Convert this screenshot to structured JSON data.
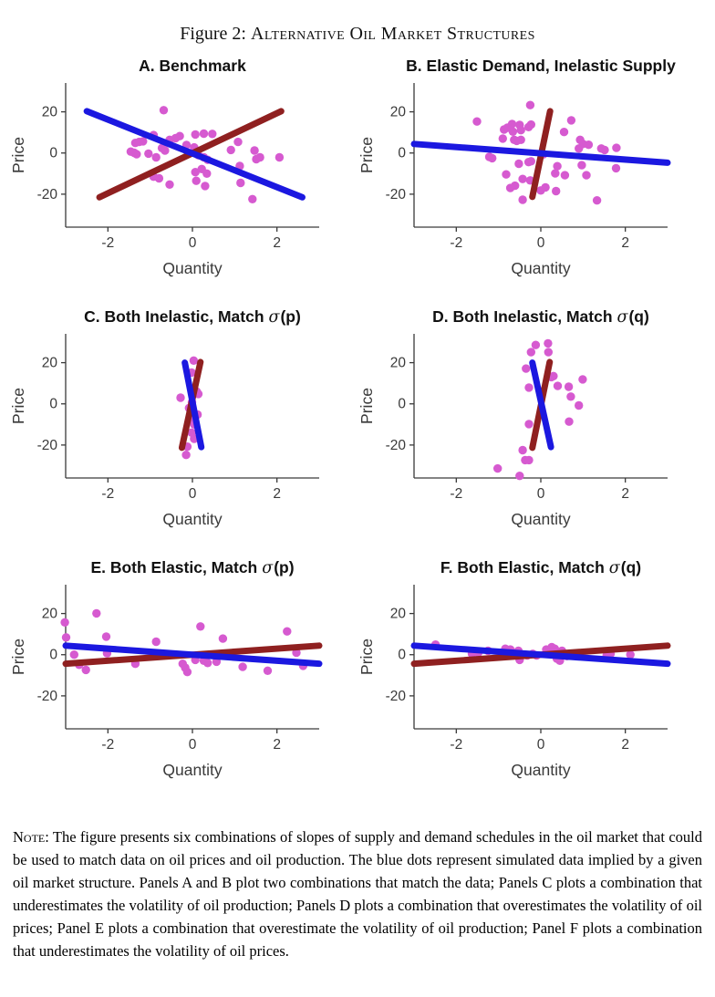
{
  "figure_title": {
    "prefix": "Figure 2: ",
    "smallcaps": "Alternative Oil Market Structures"
  },
  "colors": {
    "demand_blue": "#1b18e0",
    "supply_red": "#8f2020",
    "dots_magenta": "#d65ad0",
    "axis": "#3a3a3a",
    "title_text": "#111111"
  },
  "note": {
    "label": "Note:",
    "text": "The figure presents six combinations of slopes of supply and demand schedules in the oil market that could be used to match data on oil prices and oil production. The blue dots represent simulated data implied by a given oil market structure. Panels A and B plot two combinations that match the data; Panels C plots a combination that underestimates the volatility of oil production; Panels D plots a combination that overestimates the volatility of oil prices; Panel E plots a combination that overestimate the volatility of oil production; Panel F plots a combination that underestimates the volatility of oil prices."
  },
  "chart_data": [
    {
      "type": "scatter",
      "panel": "A",
      "title_main": "A. Benchmark",
      "sigma": "",
      "sigma_arg": "",
      "xlabel": "Quantity",
      "ylabel": "Price",
      "xlim": [
        -3,
        3
      ],
      "ylim": [
        -36,
        34
      ],
      "xticks": [
        "-2",
        "0",
        "2"
      ],
      "yticks": [
        "-20",
        "0",
        "20"
      ],
      "demand_line": {
        "x1": -2.5,
        "y1": 20.3,
        "x2": 2.6,
        "y2": -21.5
      },
      "supply_line": {
        "x1": -2.2,
        "y1": -21.5,
        "x2": 2.1,
        "y2": 20.3
      },
      "points": [
        [
          -0.68,
          20.8
        ],
        [
          -1.35,
          4.9
        ],
        [
          -1.26,
          5.4
        ],
        [
          -1.17,
          5.7
        ],
        [
          -1.46,
          0.7
        ],
        [
          -1.38,
          0.1
        ],
        [
          -1.32,
          -0.6
        ],
        [
          -1.04,
          -0.3
        ],
        [
          -0.92,
          8.7
        ],
        [
          -0.86,
          -2.1
        ],
        [
          -0.72,
          2.4
        ],
        [
          -0.65,
          1.2
        ],
        [
          -0.54,
          6.4
        ],
        [
          -0.4,
          7.2
        ],
        [
          -0.3,
          8.2
        ],
        [
          0.07,
          9.0
        ],
        [
          0.27,
          9.4
        ],
        [
          0.47,
          9.3
        ],
        [
          -0.14,
          3.9
        ],
        [
          0.04,
          2.7
        ],
        [
          0.14,
          -1.0
        ],
        [
          0.27,
          -2.1
        ],
        [
          0.36,
          -3.3
        ],
        [
          0.22,
          -7.8
        ],
        [
          0.07,
          -9.3
        ],
        [
          0.34,
          -10.0
        ],
        [
          -0.92,
          -11.5
        ],
        [
          -0.79,
          -12.3
        ],
        [
          -0.54,
          -15.3
        ],
        [
          0.09,
          -13.5
        ],
        [
          0.3,
          -16.0
        ],
        [
          0.91,
          1.5
        ],
        [
          1.08,
          5.4
        ],
        [
          1.12,
          -6.3
        ],
        [
          1.14,
          -14.5
        ],
        [
          1.47,
          1.2
        ],
        [
          1.51,
          -3.0
        ],
        [
          1.6,
          -2.1
        ],
        [
          1.42,
          -22.4
        ],
        [
          2.06,
          -2.1
        ]
      ]
    },
    {
      "type": "scatter",
      "panel": "B",
      "title_main": "B. Elastic Demand, Inelastic Supply",
      "sigma": "",
      "sigma_arg": "",
      "xlabel": "Quantity",
      "ylabel": "Price",
      "xlim": [
        -3,
        3
      ],
      "ylim": [
        -36,
        34
      ],
      "xticks": [
        "-2",
        "0",
        "2"
      ],
      "yticks": [
        "-20",
        "0",
        "20"
      ],
      "demand_line": {
        "x1": -3,
        "y1": 4.4,
        "x2": 3,
        "y2": -4.7
      },
      "supply_line": {
        "x1": -0.2,
        "y1": -21.3,
        "x2": 0.22,
        "y2": 20.3
      },
      "points": [
        [
          -0.25,
          23.3
        ],
        [
          -1.51,
          15.3
        ],
        [
          -0.87,
          11.4
        ],
        [
          -0.79,
          12.3
        ],
        [
          -0.68,
          14.1
        ],
        [
          -0.66,
          10.4
        ],
        [
          -0.5,
          13.6
        ],
        [
          -0.47,
          11.1
        ],
        [
          -0.29,
          12.6
        ],
        [
          -0.23,
          13.8
        ],
        [
          -0.9,
          7.0
        ],
        [
          -0.63,
          6.4
        ],
        [
          -0.57,
          5.9
        ],
        [
          -0.47,
          6.4
        ],
        [
          0.72,
          15.9
        ],
        [
          0.55,
          10.2
        ],
        [
          0.93,
          6.4
        ],
        [
          1.0,
          4.4
        ],
        [
          1.13,
          4.0
        ],
        [
          1.43,
          2.2
        ],
        [
          1.51,
          1.5
        ],
        [
          1.79,
          2.5
        ],
        [
          0.9,
          2.2
        ],
        [
          -1.22,
          -1.9
        ],
        [
          -1.15,
          -2.5
        ],
        [
          -0.52,
          -5.2
        ],
        [
          -0.29,
          -4.4
        ],
        [
          -0.23,
          -4.0
        ],
        [
          0.06,
          -0.7
        ],
        [
          0.39,
          -6.4
        ],
        [
          0.34,
          -9.9
        ],
        [
          0.57,
          -10.8
        ],
        [
          0.97,
          -5.9
        ],
        [
          1.08,
          -10.8
        ],
        [
          1.78,
          -7.4
        ],
        [
          -0.82,
          -10.4
        ],
        [
          -0.72,
          -17.0
        ],
        [
          -0.61,
          -15.9
        ],
        [
          -0.43,
          -12.6
        ],
        [
          -0.25,
          -13.3
        ],
        [
          0.0,
          -18.2
        ],
        [
          0.11,
          -16.7
        ],
        [
          0.36,
          -18.5
        ],
        [
          -0.43,
          -22.7
        ],
        [
          1.33,
          -23.0
        ]
      ]
    },
    {
      "type": "scatter",
      "panel": "C",
      "title_main": "C. Both Inelastic, Match",
      "sigma": "σ",
      "sigma_arg": "(p)",
      "xlabel": "Quantity",
      "ylabel": "Price",
      "xlim": [
        -3,
        3
      ],
      "ylim": [
        -36,
        34
      ],
      "xticks": [
        "-2",
        "0",
        "2"
      ],
      "yticks": [
        "-20",
        "0",
        "20"
      ],
      "demand_line": {
        "x1": -0.18,
        "y1": 20.0,
        "x2": 0.21,
        "y2": -21.0
      },
      "supply_line": {
        "x1": -0.25,
        "y1": -21.3,
        "x2": 0.19,
        "y2": 20.3
      },
      "points": [
        [
          0.03,
          21.0
        ],
        [
          -0.02,
          15.2
        ],
        [
          0.1,
          6.0
        ],
        [
          0.14,
          4.8
        ],
        [
          -0.28,
          3.0
        ],
        [
          -0.01,
          0.8
        ],
        [
          -0.08,
          -2.0
        ],
        [
          0.12,
          -5.2
        ],
        [
          -0.05,
          -7.0
        ],
        [
          0.04,
          -10.0
        ],
        [
          -0.02,
          -14.0
        ],
        [
          0.04,
          -17.0
        ],
        [
          -0.12,
          -20.8
        ],
        [
          -0.15,
          -24.8
        ]
      ]
    },
    {
      "type": "scatter",
      "panel": "D",
      "title_main": "D. Both Inelastic, Match",
      "sigma": "σ",
      "sigma_arg": "(q)",
      "xlabel": "Quantity",
      "ylabel": "Price",
      "xlim": [
        -3,
        3
      ],
      "ylim": [
        -36,
        34
      ],
      "xticks": [
        "-2",
        "0",
        "2"
      ],
      "yticks": [
        "-20",
        "0",
        "20"
      ],
      "demand_line": {
        "x1": -0.2,
        "y1": 20.0,
        "x2": 0.24,
        "y2": -21.0
      },
      "supply_line": {
        "x1": -0.2,
        "y1": -21.3,
        "x2": 0.21,
        "y2": 20.3
      },
      "points": [
        [
          -0.12,
          28.6
        ],
        [
          0.17,
          29.4
        ],
        [
          0.18,
          25.1
        ],
        [
          -0.23,
          25.1
        ],
        [
          -0.35,
          17.1
        ],
        [
          0.25,
          13.0
        ],
        [
          0.3,
          13.5
        ],
        [
          0.4,
          8.7
        ],
        [
          0.66,
          8.3
        ],
        [
          -0.28,
          7.9
        ],
        [
          0.99,
          11.9
        ],
        [
          0.71,
          3.5
        ],
        [
          0.9,
          -0.8
        ],
        [
          0.67,
          -8.6
        ],
        [
          -0.28,
          -9.8
        ],
        [
          -0.43,
          -22.5
        ],
        [
          -0.37,
          -27.3
        ],
        [
          -0.28,
          -27.3
        ],
        [
          -1.02,
          -31.4
        ],
        [
          -0.5,
          -35.0
        ]
      ]
    },
    {
      "type": "scatter",
      "panel": "E",
      "title_main": "E. Both Elastic, Match",
      "sigma": "σ",
      "sigma_arg": "(p)",
      "xlabel": "Quantity",
      "ylabel": "Price",
      "xlim": [
        -3,
        3
      ],
      "ylim": [
        -36,
        34
      ],
      "xticks": [
        "-2",
        "0",
        "2"
      ],
      "yticks": [
        "-20",
        "0",
        "20"
      ],
      "demand_line": {
        "x1": -3,
        "y1": 4.4,
        "x2": 3,
        "y2": -4.4
      },
      "supply_line": {
        "x1": -3,
        "y1": -4.4,
        "x2": 3,
        "y2": 4.4
      },
      "points": [
        [
          -3.02,
          15.7
        ],
        [
          -2.99,
          8.4
        ],
        [
          -2.27,
          20.1
        ],
        [
          -2.8,
          0.0
        ],
        [
          -2.68,
          -4.9
        ],
        [
          -2.52,
          -7.4
        ],
        [
          -2.04,
          8.8
        ],
        [
          -2.02,
          0.7
        ],
        [
          -1.35,
          -4.4
        ],
        [
          -0.86,
          6.3
        ],
        [
          -0.23,
          -4.4
        ],
        [
          -0.17,
          -6.3
        ],
        [
          -0.12,
          -8.4
        ],
        [
          0.07,
          -2.5
        ],
        [
          0.19,
          13.7
        ],
        [
          0.27,
          -2.9
        ],
        [
          0.36,
          -4.0
        ],
        [
          0.57,
          -3.4
        ],
        [
          0.72,
          7.8
        ],
        [
          1.19,
          -5.9
        ],
        [
          1.78,
          -7.8
        ],
        [
          2.24,
          11.3
        ],
        [
          2.46,
          1.0
        ],
        [
          2.62,
          -5.4
        ]
      ]
    },
    {
      "type": "scatter",
      "panel": "F",
      "title_main": "F. Both Elastic, Match",
      "sigma": "σ",
      "sigma_arg": "(q)",
      "xlabel": "Quantity",
      "ylabel": "Price",
      "xlim": [
        -3,
        3
      ],
      "ylim": [
        -36,
        34
      ],
      "xticks": [
        "-2",
        "0",
        "2"
      ],
      "yticks": [
        "-20",
        "0",
        "20"
      ],
      "demand_line": {
        "x1": -3,
        "y1": 4.4,
        "x2": 3,
        "y2": -4.4
      },
      "supply_line": {
        "x1": -3,
        "y1": -4.4,
        "x2": 3,
        "y2": 4.4
      },
      "points": [
        [
          -2.49,
          4.9
        ],
        [
          -1.63,
          0.4
        ],
        [
          -1.48,
          1.0
        ],
        [
          -1.25,
          1.9
        ],
        [
          -0.84,
          2.9
        ],
        [
          -0.72,
          2.5
        ],
        [
          -0.53,
          1.9
        ],
        [
          -0.5,
          -2.5
        ],
        [
          -0.32,
          -0.4
        ],
        [
          -0.19,
          0.4
        ],
        [
          -0.1,
          -0.4
        ],
        [
          0.13,
          2.5
        ],
        [
          0.26,
          3.7
        ],
        [
          0.33,
          2.9
        ],
        [
          0.36,
          0.4
        ],
        [
          0.38,
          -1.9
        ],
        [
          0.45,
          -2.9
        ],
        [
          0.5,
          1.9
        ],
        [
          0.56,
          0.4
        ],
        [
          0.62,
          -0.7
        ],
        [
          1.56,
          -0.4
        ],
        [
          1.65,
          0.4
        ],
        [
          2.12,
          0.0
        ]
      ]
    }
  ]
}
